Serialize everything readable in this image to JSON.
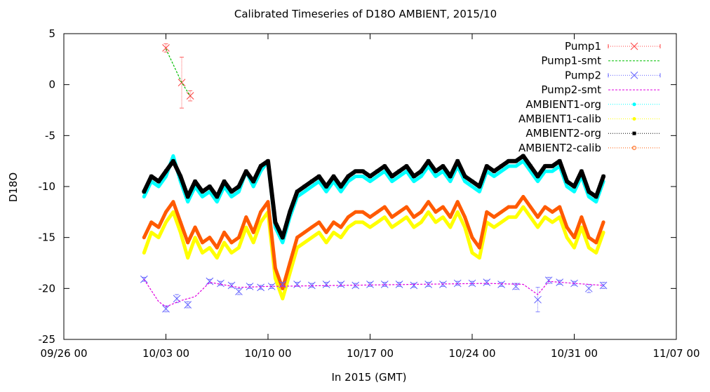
{
  "chart_data": {
    "type": "scatter",
    "title": "Calibrated Timeseries of D18O AMBIENT, 2015/10",
    "xlabel": "In 2015 (GMT)",
    "ylabel": "D18O",
    "xlim": [
      "2015-09-26 00:00",
      "2015-11-07 00:00"
    ],
    "ylim": [
      -25,
      5
    ],
    "x_ticks": [
      {
        "t": "2015-09-26 00:00",
        "label": "09/26 00"
      },
      {
        "t": "2015-10-03 00:00",
        "label": "10/03 00"
      },
      {
        "t": "2015-10-10 00:00",
        "label": "10/10 00"
      },
      {
        "t": "2015-10-17 00:00",
        "label": "10/17 00"
      },
      {
        "t": "2015-10-24 00:00",
        "label": "10/24 00"
      },
      {
        "t": "2015-10-31 00:00",
        "label": "10/31 00"
      },
      {
        "t": "2015-11-07 00:00",
        "label": "11/07 00"
      }
    ],
    "y_ticks": [
      5,
      0,
      -5,
      -10,
      -15,
      -20,
      -25
    ],
    "grid": false,
    "legend_position": "top-right",
    "series": [
      {
        "name": "Pump1",
        "color": "#ff4040",
        "marker": "x",
        "x": [
          "2015-10-03 00:00",
          "2015-10-04 02:00",
          "2015-10-04 16:00"
        ],
        "y": [
          3.6,
          0.2,
          -1.1
        ],
        "yerr": [
          0.4,
          2.5,
          0.5
        ]
      },
      {
        "name": "Pump1-smt",
        "color": "#00c000",
        "marker": "line",
        "x": [
          "2015-10-03 00:00",
          "2015-10-04 02:00",
          "2015-10-04 16:00"
        ],
        "y": [
          3.5,
          0.2,
          -1.1
        ]
      },
      {
        "name": "Pump2",
        "color": "#6060ff",
        "marker": "x",
        "x": [
          "2015-10-01 12:00",
          "2015-10-03 00:00",
          "2015-10-03 18:00",
          "2015-10-04 12:00",
          "2015-10-06 00:00",
          "2015-10-06 18:00",
          "2015-10-07 12:00",
          "2015-10-08 00:00",
          "2015-10-08 18:00",
          "2015-10-09 12:00",
          "2015-10-10 06:00",
          "2015-10-11 00:00",
          "2015-10-12 00:00",
          "2015-10-13 00:00",
          "2015-10-14 00:00",
          "2015-10-15 00:00",
          "2015-10-16 00:00",
          "2015-10-17 00:00",
          "2015-10-18 00:00",
          "2015-10-19 00:00",
          "2015-10-20 00:00",
          "2015-10-21 00:00",
          "2015-10-22 00:00",
          "2015-10-23 00:00",
          "2015-10-24 00:00",
          "2015-10-25 00:00",
          "2015-10-26 00:00",
          "2015-10-27 00:00",
          "2015-10-28 12:00",
          "2015-10-29 06:00",
          "2015-10-30 00:00",
          "2015-10-31 00:00",
          "2015-11-01 00:00",
          "2015-11-02 00:00"
        ],
        "y": [
          -19.1,
          -22.0,
          -21.0,
          -21.6,
          -19.3,
          -19.5,
          -19.7,
          -20.3,
          -19.8,
          -19.9,
          -19.8,
          -19.6,
          -19.6,
          -19.7,
          -19.6,
          -19.6,
          -19.7,
          -19.6,
          -19.6,
          -19.6,
          -19.7,
          -19.6,
          -19.6,
          -19.5,
          -19.5,
          -19.4,
          -19.6,
          -19.8,
          -21.1,
          -19.2,
          -19.4,
          -19.5,
          -20.0,
          -19.7
        ],
        "yerr": [
          0.2,
          0.3,
          0.4,
          0.3,
          0.2,
          0.2,
          0.2,
          0.3,
          0.2,
          0.2,
          0.2,
          0.2,
          0.2,
          0.2,
          0.2,
          0.2,
          0.2,
          0.2,
          0.2,
          0.2,
          0.2,
          0.2,
          0.2,
          0.2,
          0.2,
          0.2,
          0.2,
          0.3,
          1.2,
          0.3,
          0.2,
          0.2,
          0.4,
          0.3
        ]
      },
      {
        "name": "Pump2-smt",
        "color": "#e000e0",
        "marker": "line",
        "x": [
          "2015-10-01 12:00",
          "2015-10-02 12:00",
          "2015-10-03 00:00",
          "2015-10-04 00:00",
          "2015-10-05 00:00",
          "2015-10-06 00:00",
          "2015-10-08 00:00",
          "2015-10-10 00:00",
          "2015-10-15 00:00",
          "2015-10-20 00:00",
          "2015-10-25 00:00",
          "2015-10-27 12:00",
          "2015-10-28 12:00",
          "2015-10-29 06:00",
          "2015-10-31 00:00",
          "2015-11-02 00:00"
        ],
        "y": [
          -19.1,
          -21.3,
          -21.8,
          -21.2,
          -20.8,
          -19.4,
          -19.9,
          -19.8,
          -19.7,
          -19.6,
          -19.5,
          -19.6,
          -20.6,
          -19.3,
          -19.5,
          -19.7
        ]
      },
      {
        "name": "AMBIENT1-org",
        "color": "#00ffff",
        "marker": "dot",
        "x": [
          "2015-10-01 12:00",
          "2015-10-02 00:00",
          "2015-10-02 12:00",
          "2015-10-03 00:00",
          "2015-10-03 12:00",
          "2015-10-04 00:00",
          "2015-10-04 12:00",
          "2015-10-05 00:00",
          "2015-10-05 12:00",
          "2015-10-06 00:00",
          "2015-10-06 12:00",
          "2015-10-07 00:00",
          "2015-10-07 12:00",
          "2015-10-08 00:00",
          "2015-10-08 12:00",
          "2015-10-09 00:00",
          "2015-10-09 12:00",
          "2015-10-10 00:00",
          "2015-10-10 12:00",
          "2015-10-11 00:00",
          "2015-10-11 12:00",
          "2015-10-12 00:00",
          "2015-10-12 12:00",
          "2015-10-13 00:00",
          "2015-10-13 12:00",
          "2015-10-14 00:00",
          "2015-10-14 12:00",
          "2015-10-15 00:00",
          "2015-10-15 12:00",
          "2015-10-16 00:00",
          "2015-10-16 12:00",
          "2015-10-17 00:00",
          "2015-10-17 12:00",
          "2015-10-18 00:00",
          "2015-10-18 12:00",
          "2015-10-19 00:00",
          "2015-10-19 12:00",
          "2015-10-20 00:00",
          "2015-10-20 12:00",
          "2015-10-21 00:00",
          "2015-10-21 12:00",
          "2015-10-22 00:00",
          "2015-10-22 12:00",
          "2015-10-23 00:00",
          "2015-10-23 12:00",
          "2015-10-24 00:00",
          "2015-10-24 12:00",
          "2015-10-25 00:00",
          "2015-10-25 12:00",
          "2015-10-26 00:00",
          "2015-10-26 12:00",
          "2015-10-27 00:00",
          "2015-10-27 12:00",
          "2015-10-28 00:00",
          "2015-10-28 12:00",
          "2015-10-29 00:00",
          "2015-10-29 12:00",
          "2015-10-30 00:00",
          "2015-10-30 12:00",
          "2015-10-31 00:00",
          "2015-10-31 12:00",
          "2015-11-01 00:00",
          "2015-11-01 12:00",
          "2015-11-02 00:00"
        ],
        "y": [
          -11.0,
          -9.5,
          -10.0,
          -9.0,
          -7.0,
          -9.5,
          -11.5,
          -10.0,
          -11.0,
          -10.5,
          -11.5,
          -10.0,
          -11.0,
          -10.5,
          -8.5,
          -10.0,
          -8.5,
          -7.5,
          -14.0,
          -15.5,
          -13.0,
          -11.0,
          -10.5,
          -10.0,
          -9.5,
          -10.5,
          -9.5,
          -10.5,
          -9.5,
          -9.0,
          -9.0,
          -9.5,
          -9.0,
          -8.5,
          -9.5,
          -9.0,
          -8.5,
          -9.5,
          -9.0,
          -8.0,
          -9.0,
          -8.5,
          -9.5,
          -8.0,
          -9.5,
          -10.0,
          -10.5,
          -8.5,
          -9.0,
          -8.5,
          -8.0,
          -8.0,
          -7.5,
          -8.5,
          -9.5,
          -8.5,
          -8.5,
          -8.0,
          -10.0,
          -10.5,
          -9.0,
          -11.0,
          -11.5,
          -9.5
        ]
      },
      {
        "name": "AMBIENT1-calib",
        "color": "#ffff00",
        "marker": "dot",
        "x": [
          "2015-10-01 12:00",
          "2015-10-02 00:00",
          "2015-10-02 12:00",
          "2015-10-03 00:00",
          "2015-10-03 12:00",
          "2015-10-04 00:00",
          "2015-10-04 12:00",
          "2015-10-05 00:00",
          "2015-10-05 12:00",
          "2015-10-06 00:00",
          "2015-10-06 12:00",
          "2015-10-07 00:00",
          "2015-10-07 12:00",
          "2015-10-08 00:00",
          "2015-10-08 12:00",
          "2015-10-09 00:00",
          "2015-10-09 12:00",
          "2015-10-10 00:00",
          "2015-10-10 12:00",
          "2015-10-11 00:00",
          "2015-10-11 12:00",
          "2015-10-12 00:00",
          "2015-10-12 12:00",
          "2015-10-13 00:00",
          "2015-10-13 12:00",
          "2015-10-14 00:00",
          "2015-10-14 12:00",
          "2015-10-15 00:00",
          "2015-10-15 12:00",
          "2015-10-16 00:00",
          "2015-10-16 12:00",
          "2015-10-17 00:00",
          "2015-10-17 12:00",
          "2015-10-18 00:00",
          "2015-10-18 12:00",
          "2015-10-19 00:00",
          "2015-10-19 12:00",
          "2015-10-20 00:00",
          "2015-10-20 12:00",
          "2015-10-21 00:00",
          "2015-10-21 12:00",
          "2015-10-22 00:00",
          "2015-10-22 12:00",
          "2015-10-23 00:00",
          "2015-10-23 12:00",
          "2015-10-24 00:00",
          "2015-10-24 12:00",
          "2015-10-25 00:00",
          "2015-10-25 12:00",
          "2015-10-26 00:00",
          "2015-10-26 12:00",
          "2015-10-27 00:00",
          "2015-10-27 12:00",
          "2015-10-28 00:00",
          "2015-10-28 12:00",
          "2015-10-29 00:00",
          "2015-10-29 12:00",
          "2015-10-30 00:00",
          "2015-10-30 12:00",
          "2015-10-31 00:00",
          "2015-10-31 12:00",
          "2015-11-01 00:00",
          "2015-11-01 12:00",
          "2015-11-02 00:00"
        ],
        "y": [
          -16.5,
          -14.5,
          -15.0,
          -13.5,
          -12.5,
          -14.5,
          -17.0,
          -15.0,
          -16.5,
          -16.0,
          -17.0,
          -15.5,
          -16.5,
          -16.0,
          -14.0,
          -15.5,
          -13.5,
          -12.5,
          -19.0,
          -21.0,
          -18.5,
          -16.0,
          -15.5,
          -15.0,
          -14.5,
          -15.5,
          -14.5,
          -15.0,
          -14.0,
          -13.5,
          -13.5,
          -14.0,
          -13.5,
          -13.0,
          -14.0,
          -13.5,
          -13.0,
          -14.0,
          -13.5,
          -12.5,
          -13.5,
          -13.0,
          -14.0,
          -12.5,
          -14.0,
          -16.5,
          -17.0,
          -13.5,
          -14.0,
          -13.5,
          -13.0,
          -13.0,
          -12.0,
          -13.0,
          -14.0,
          -13.0,
          -13.5,
          -13.0,
          -15.0,
          -16.0,
          -14.0,
          -16.0,
          -16.5,
          -14.5
        ]
      },
      {
        "name": "AMBIENT2-org",
        "color": "#000000",
        "marker": "square",
        "x": [
          "2015-10-01 12:00",
          "2015-10-02 00:00",
          "2015-10-02 12:00",
          "2015-10-03 00:00",
          "2015-10-03 12:00",
          "2015-10-04 00:00",
          "2015-10-04 12:00",
          "2015-10-05 00:00",
          "2015-10-05 12:00",
          "2015-10-06 00:00",
          "2015-10-06 12:00",
          "2015-10-07 00:00",
          "2015-10-07 12:00",
          "2015-10-08 00:00",
          "2015-10-08 12:00",
          "2015-10-09 00:00",
          "2015-10-09 12:00",
          "2015-10-10 00:00",
          "2015-10-10 12:00",
          "2015-10-11 00:00",
          "2015-10-11 12:00",
          "2015-10-12 00:00",
          "2015-10-12 12:00",
          "2015-10-13 00:00",
          "2015-10-13 12:00",
          "2015-10-14 00:00",
          "2015-10-14 12:00",
          "2015-10-15 00:00",
          "2015-10-15 12:00",
          "2015-10-16 00:00",
          "2015-10-16 12:00",
          "2015-10-17 00:00",
          "2015-10-17 12:00",
          "2015-10-18 00:00",
          "2015-10-18 12:00",
          "2015-10-19 00:00",
          "2015-10-19 12:00",
          "2015-10-20 00:00",
          "2015-10-20 12:00",
          "2015-10-21 00:00",
          "2015-10-21 12:00",
          "2015-10-22 00:00",
          "2015-10-22 12:00",
          "2015-10-23 00:00",
          "2015-10-23 12:00",
          "2015-10-24 00:00",
          "2015-10-24 12:00",
          "2015-10-25 00:00",
          "2015-10-25 12:00",
          "2015-10-26 00:00",
          "2015-10-26 12:00",
          "2015-10-27 00:00",
          "2015-10-27 12:00",
          "2015-10-28 00:00",
          "2015-10-28 12:00",
          "2015-10-29 00:00",
          "2015-10-29 12:00",
          "2015-10-30 00:00",
          "2015-10-30 12:00",
          "2015-10-31 00:00",
          "2015-10-31 12:00",
          "2015-11-01 00:00",
          "2015-11-01 12:00",
          "2015-11-02 00:00"
        ],
        "y": [
          -10.5,
          -9.0,
          -9.5,
          -8.5,
          -7.5,
          -9.0,
          -11.0,
          -9.5,
          -10.5,
          -10.0,
          -11.0,
          -9.5,
          -10.5,
          -10.0,
          -8.5,
          -9.5,
          -8.0,
          -7.5,
          -13.5,
          -15.0,
          -12.5,
          -10.5,
          -10.0,
          -9.5,
          -9.0,
          -10.0,
          -9.0,
          -10.0,
          -9.0,
          -8.5,
          -8.5,
          -9.0,
          -8.5,
          -8.0,
          -9.0,
          -8.5,
          -8.0,
          -9.0,
          -8.5,
          -7.5,
          -8.5,
          -8.0,
          -9.0,
          -7.5,
          -9.0,
          -9.5,
          -10.0,
          -8.0,
          -8.5,
          -8.0,
          -7.5,
          -7.5,
          -7.0,
          -8.0,
          -9.0,
          -8.0,
          -8.0,
          -7.5,
          -9.5,
          -10.0,
          -8.5,
          -10.5,
          -11.0,
          -9.0
        ]
      },
      {
        "name": "AMBIENT2-calib",
        "color": "#ff5a00",
        "marker": "circle",
        "x": [
          "2015-10-01 12:00",
          "2015-10-02 00:00",
          "2015-10-02 12:00",
          "2015-10-03 00:00",
          "2015-10-03 12:00",
          "2015-10-04 00:00",
          "2015-10-04 12:00",
          "2015-10-05 00:00",
          "2015-10-05 12:00",
          "2015-10-06 00:00",
          "2015-10-06 12:00",
          "2015-10-07 00:00",
          "2015-10-07 12:00",
          "2015-10-08 00:00",
          "2015-10-08 12:00",
          "2015-10-09 00:00",
          "2015-10-09 12:00",
          "2015-10-10 00:00",
          "2015-10-10 12:00",
          "2015-10-11 00:00",
          "2015-10-11 12:00",
          "2015-10-12 00:00",
          "2015-10-12 12:00",
          "2015-10-13 00:00",
          "2015-10-13 12:00",
          "2015-10-14 00:00",
          "2015-10-14 12:00",
          "2015-10-15 00:00",
          "2015-10-15 12:00",
          "2015-10-16 00:00",
          "2015-10-16 12:00",
          "2015-10-17 00:00",
          "2015-10-17 12:00",
          "2015-10-18 00:00",
          "2015-10-18 12:00",
          "2015-10-19 00:00",
          "2015-10-19 12:00",
          "2015-10-20 00:00",
          "2015-10-20 12:00",
          "2015-10-21 00:00",
          "2015-10-21 12:00",
          "2015-10-22 00:00",
          "2015-10-22 12:00",
          "2015-10-23 00:00",
          "2015-10-23 12:00",
          "2015-10-24 00:00",
          "2015-10-24 12:00",
          "2015-10-25 00:00",
          "2015-10-25 12:00",
          "2015-10-26 00:00",
          "2015-10-26 12:00",
          "2015-10-27 00:00",
          "2015-10-27 12:00",
          "2015-10-28 00:00",
          "2015-10-28 12:00",
          "2015-10-29 00:00",
          "2015-10-29 12:00",
          "2015-10-30 00:00",
          "2015-10-30 12:00",
          "2015-10-31 00:00",
          "2015-10-31 12:00",
          "2015-11-01 00:00",
          "2015-11-01 12:00",
          "2015-11-02 00:00"
        ],
        "y": [
          -15.0,
          -13.5,
          -14.0,
          -12.5,
          -11.5,
          -13.5,
          -15.5,
          -14.0,
          -15.5,
          -15.0,
          -16.0,
          -14.5,
          -15.5,
          -15.0,
          -13.0,
          -14.5,
          -12.5,
          -11.5,
          -18.0,
          -20.0,
          -17.5,
          -15.0,
          -14.5,
          -14.0,
          -13.5,
          -14.5,
          -13.5,
          -14.0,
          -13.0,
          -12.5,
          -12.5,
          -13.0,
          -12.5,
          -12.0,
          -13.0,
          -12.5,
          -12.0,
          -13.0,
          -12.5,
          -11.5,
          -12.5,
          -12.0,
          -13.0,
          -11.5,
          -13.0,
          -15.0,
          -16.0,
          -12.5,
          -13.0,
          -12.5,
          -12.0,
          -12.0,
          -11.0,
          -12.0,
          -13.0,
          -12.0,
          -12.5,
          -12.0,
          -14.0,
          -15.0,
          -13.0,
          -15.0,
          -15.5,
          -13.5
        ]
      }
    ]
  }
}
